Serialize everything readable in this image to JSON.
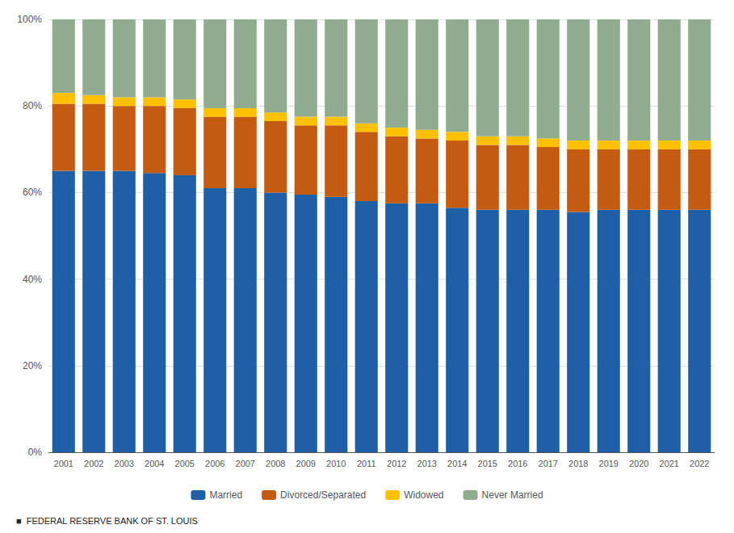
{
  "chart_data": {
    "type": "bar",
    "stacked": true,
    "categories": [
      "2001",
      "2002",
      "2003",
      "2004",
      "2005",
      "2006",
      "2007",
      "2008",
      "2009",
      "2010",
      "2011",
      "2012",
      "2013",
      "2014",
      "2015",
      "2016",
      "2017",
      "2018",
      "2019",
      "2020",
      "2021",
      "2022"
    ],
    "series": [
      {
        "name": "Married",
        "color": "#1f5fa6",
        "values": [
          65.0,
          65.0,
          65.0,
          64.5,
          64.0,
          61.0,
          61.0,
          60.0,
          59.5,
          59.0,
          58.0,
          57.5,
          57.5,
          56.5,
          56.0,
          56.0,
          56.0,
          55.5,
          56.0,
          56.0,
          56.0,
          56.0
        ]
      },
      {
        "name": "Divorced/Separated",
        "color": "#c55a11",
        "values": [
          15.5,
          15.5,
          15.0,
          15.5,
          15.5,
          16.5,
          16.5,
          16.5,
          16.0,
          16.5,
          16.0,
          15.5,
          15.0,
          15.5,
          15.0,
          15.0,
          14.5,
          14.5,
          14.0,
          14.0,
          14.0,
          14.0
        ]
      },
      {
        "name": "Widowed",
        "color": "#ffc000",
        "values": [
          2.5,
          2.0,
          2.0,
          2.0,
          2.0,
          2.0,
          2.0,
          2.0,
          2.0,
          2.0,
          2.0,
          2.0,
          2.0,
          2.0,
          2.0,
          2.0,
          2.0,
          2.0,
          2.0,
          2.0,
          2.0,
          2.0
        ]
      },
      {
        "name": "Never Married",
        "color": "#8fac8f",
        "values": [
          17.0,
          17.5,
          18.0,
          18.0,
          18.5,
          20.5,
          20.5,
          21.5,
          22.5,
          22.5,
          24.0,
          25.0,
          25.5,
          26.0,
          27.0,
          27.0,
          27.5,
          28.0,
          28.0,
          28.0,
          28.0,
          28.0
        ]
      }
    ],
    "ylim": [
      0,
      100
    ],
    "yticks": [
      {
        "value": 0,
        "label": "0%"
      },
      {
        "value": 20,
        "label": "20%"
      },
      {
        "value": 40,
        "label": "40%"
      },
      {
        "value": 60,
        "label": "60%"
      },
      {
        "value": 80,
        "label": "80%"
      },
      {
        "value": 100,
        "label": "100%"
      }
    ],
    "grid": true,
    "legend": "bottom",
    "footer": "■  FEDERAL RESERVE BANK OF ST. LOUIS"
  }
}
